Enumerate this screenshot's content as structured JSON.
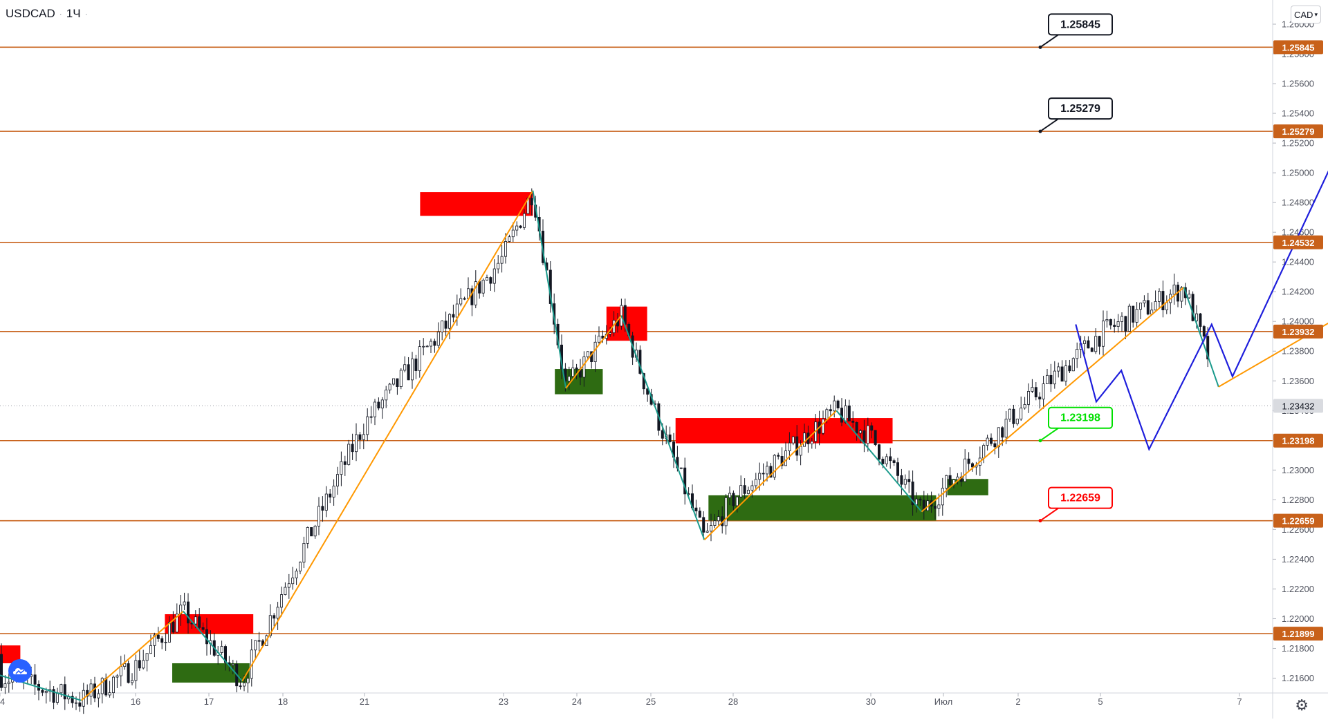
{
  "header": {
    "symbol": "USDCAD",
    "sep": "·",
    "interval": "1Ч",
    "sep2": "·"
  },
  "currency_button": {
    "label": "CAD",
    "icon": "chevron-down-icon"
  },
  "settings_icon": "gear-icon",
  "logo_icon": "tradingview-cloud-icon",
  "colors": {
    "level_line": "#c8611a",
    "level_label_bg": "#c8611a",
    "supply_zone": "#ff0000",
    "demand_zone": "#2e6b12",
    "zigzag_up": "#ff9800",
    "zigzag_down": "#1a9a8c",
    "forecast": "#1e1edc",
    "candle": "#131722",
    "current_price_bg": "#d9dbe0",
    "target_green": "#00e000",
    "stop_red": "#ff0000"
  },
  "chart_data": {
    "type": "candlestick",
    "title": "USDCAD · 1Ч",
    "ylabel": "CAD",
    "ylim": [
      1.215,
      1.26
    ],
    "grid": false,
    "y_ticks": [
      "1.26000",
      "1.25800",
      "1.25600",
      "1.25400",
      "1.25200",
      "1.25000",
      "1.24800",
      "1.24600",
      "1.24400",
      "1.24200",
      "1.24000",
      "1.23800",
      "1.23600",
      "1.23400",
      "1.23000",
      "1.22800",
      "1.22600",
      "1.22400",
      "1.22200",
      "1.22000",
      "1.21800",
      "1.21600"
    ],
    "x_ticks": [
      "4",
      "16",
      "17",
      "18",
      "21",
      "23",
      "24",
      "25",
      "28",
      "30",
      "Июл",
      "2",
      "5",
      "7"
    ],
    "levels": [
      {
        "label": "1.25845",
        "value": 1.25845
      },
      {
        "label": "1.25279",
        "value": 1.25279
      },
      {
        "label": "1.24532",
        "value": 1.24532
      },
      {
        "label": "1.23932",
        "value": 1.23932
      },
      {
        "label": "1.23198",
        "value": 1.23198
      },
      {
        "label": "1.22659",
        "value": 1.22659
      },
      {
        "label": "1.21899",
        "value": 1.21899
      }
    ],
    "current_price": {
      "label": "1.23432",
      "value": 1.23432
    },
    "callouts": [
      {
        "label": "1.25845",
        "style": "black",
        "value": 1.25845
      },
      {
        "label": "1.25279",
        "style": "black",
        "value": 1.25279
      },
      {
        "label": "1.23198",
        "style": "green",
        "value": 1.23198
      },
      {
        "label": "1.22659",
        "style": "red",
        "value": 1.22659
      }
    ],
    "zones": [
      {
        "kind": "supply",
        "x": [
          -0.5,
          0.15
        ],
        "y": [
          1.217,
          1.2182
        ]
      },
      {
        "kind": "supply",
        "x": [
          1.4,
          2.6
        ],
        "y": [
          1.219,
          1.2203
        ]
      },
      {
        "kind": "demand",
        "x": [
          1.5,
          2.55
        ],
        "y": [
          1.2157,
          1.217
        ]
      },
      {
        "kind": "supply",
        "x": [
          4.4,
          5.4
        ],
        "y": [
          1.2471,
          1.2487
        ]
      },
      {
        "kind": "supply",
        "x": [
          6.4,
          6.95
        ],
        "y": [
          1.2387,
          1.241
        ]
      },
      {
        "kind": "demand",
        "x": [
          5.7,
          6.35
        ],
        "y": [
          1.2351,
          1.2368
        ]
      },
      {
        "kind": "supply",
        "x": [
          7.3,
          9.3
        ],
        "y": [
          1.2318,
          1.2335
        ]
      },
      {
        "kind": "demand",
        "x": [
          7.7,
          9.9
        ],
        "y": [
          1.2266,
          1.2283
        ]
      },
      {
        "kind": "demand",
        "x": [
          10.05,
          10.6
        ],
        "y": [
          1.2283,
          1.2294
        ]
      }
    ],
    "zigzag": [
      {
        "color": "down",
        "points": [
          [
            -0.5,
            1.2176
          ],
          [
            0.6,
            1.2145
          ]
        ]
      },
      {
        "color": "up",
        "points": [
          [
            0.6,
            1.2145
          ],
          [
            1.65,
            1.2205
          ]
        ]
      },
      {
        "color": "down",
        "points": [
          [
            1.65,
            1.2205
          ],
          [
            2.45,
            1.2158
          ]
        ]
      },
      {
        "color": "up",
        "points": [
          [
            2.45,
            1.2158
          ],
          [
            5.4,
            1.2488
          ]
        ]
      },
      {
        "color": "down",
        "points": [
          [
            5.4,
            1.2488
          ],
          [
            5.85,
            1.2355
          ]
        ]
      },
      {
        "color": "up",
        "points": [
          [
            5.85,
            1.2355
          ],
          [
            6.6,
            1.2404
          ]
        ]
      },
      {
        "color": "down",
        "points": [
          [
            6.6,
            1.2404
          ],
          [
            7.65,
            1.2253
          ]
        ]
      },
      {
        "color": "up",
        "points": [
          [
            7.65,
            1.2253
          ],
          [
            8.75,
            1.234
          ]
        ]
      },
      {
        "color": "down",
        "points": [
          [
            8.75,
            1.234
          ],
          [
            9.7,
            1.2272
          ]
        ]
      },
      {
        "color": "up",
        "points": [
          [
            9.7,
            1.2272
          ],
          [
            12.6,
            1.2423
          ]
        ]
      },
      {
        "color": "down",
        "points": [
          [
            12.6,
            1.2423
          ],
          [
            12.85,
            1.2356
          ]
        ]
      },
      {
        "color": "up",
        "points": [
          [
            12.85,
            1.2356
          ],
          [
            14.6,
            1.2451
          ]
        ]
      },
      {
        "color": "down",
        "points": [
          [
            14.6,
            1.2451
          ],
          [
            15.05,
            1.2309
          ]
        ]
      },
      {
        "color": "up",
        "points": [
          [
            15.05,
            1.2309
          ],
          [
            15.75,
            1.2372
          ]
        ]
      }
    ],
    "forecast": [
      [
        11.7,
        1.2398
      ],
      [
        11.95,
        1.2346
      ],
      [
        12.15,
        1.2367
      ],
      [
        12.35,
        1.2314
      ],
      [
        12.8,
        1.2398
      ],
      [
        12.95,
        1.2363
      ],
      [
        13.9,
        1.2553
      ],
      [
        14.0,
        1.2527
      ],
      [
        14.3,
        1.2583
      ]
    ],
    "stop_marker": {
      "x": 14.15,
      "y": 1.2261
    },
    "candles_summary": {
      "start": 1.2176,
      "end": 1.2343,
      "high": 1.2488,
      "low": 1.2145
    }
  }
}
